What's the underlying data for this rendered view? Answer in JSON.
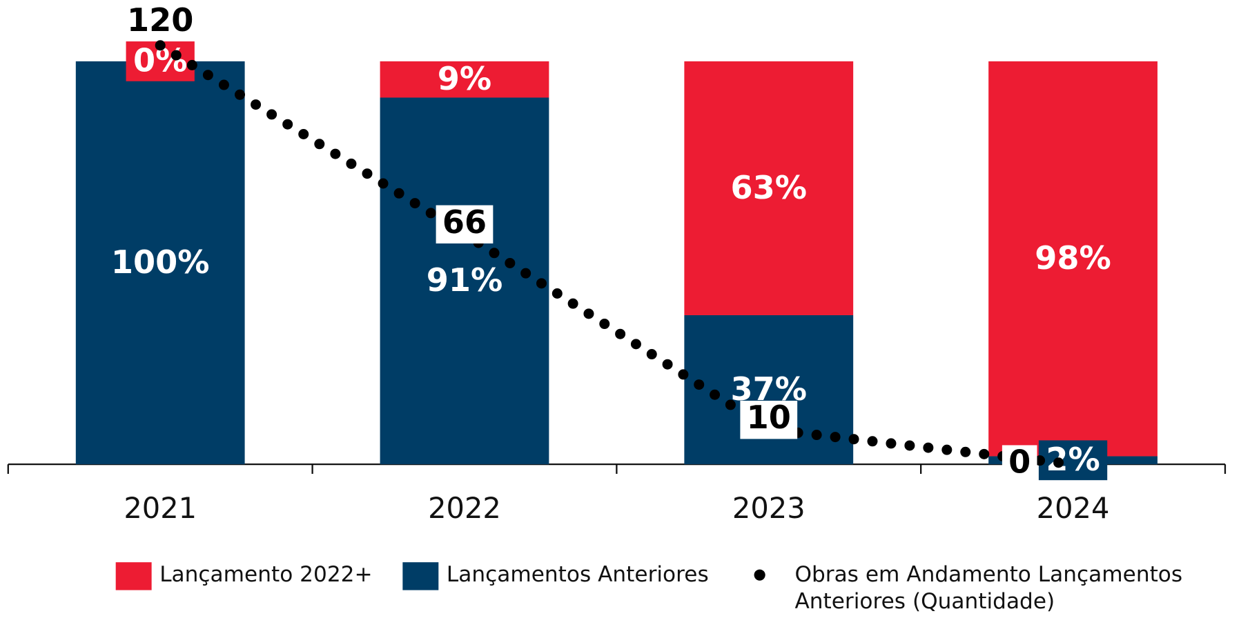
{
  "chart_data": {
    "type": "bar",
    "stacked": true,
    "categories": [
      "2021",
      "2022",
      "2023",
      "2024"
    ],
    "ylim": [
      0,
      100
    ],
    "y2lim": [
      0,
      120
    ],
    "series": [
      {
        "name": "Lançamentos Anteriores",
        "color": "#003d66",
        "values": [
          100,
          91,
          37,
          2
        ],
        "value_labels": [
          "100%",
          "91%",
          "37%",
          "2%"
        ]
      },
      {
        "name": "Lançamento 2022+",
        "color": "#ed1c33",
        "values": [
          0,
          9,
          63,
          98
        ],
        "value_labels": [
          "0%",
          "9%",
          "63%",
          "98%"
        ]
      },
      {
        "name": "Obras em Andamento Lançamentos Anteriores (Quantidade)",
        "type": "line",
        "axis": "y2",
        "color": "#000000",
        "values": [
          120,
          66,
          10,
          0
        ]
      }
    ]
  }
}
